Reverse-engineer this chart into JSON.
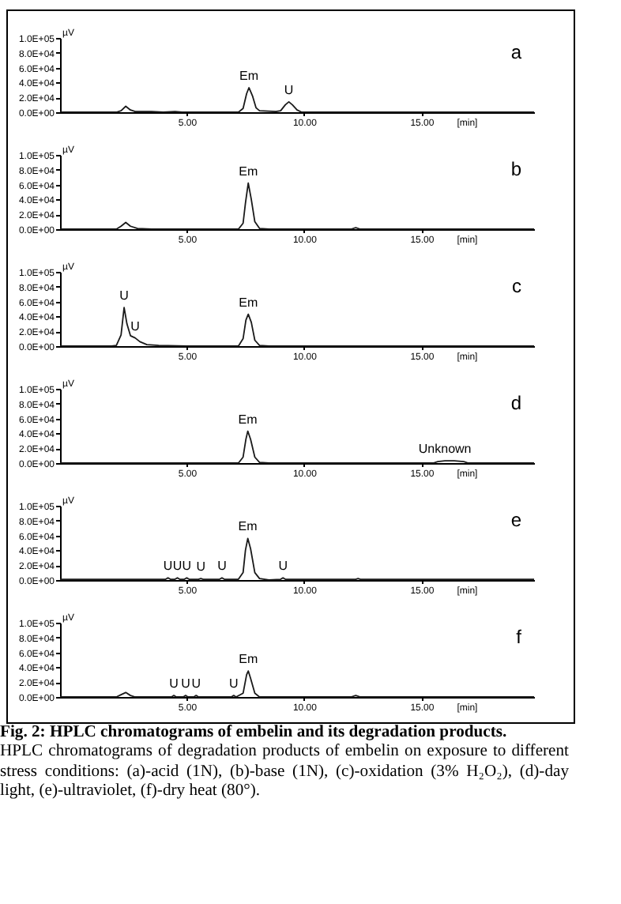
{
  "chart_data": [
    {
      "type": "line",
      "title": "a",
      "xlabel": "[min]",
      "ylabel": "µV",
      "xlim": [
        -0.4,
        19.8
      ],
      "ylim": [
        0,
        100000
      ],
      "xticks": [
        {
          "value": 5,
          "label": "5.00"
        },
        {
          "value": 10,
          "label": "10.00"
        },
        {
          "value": 15,
          "label": "15.00"
        }
      ],
      "yticks": [
        {
          "value": 0,
          "label": "0.0E+00"
        },
        {
          "value": 20000,
          "label": "2.0E+04"
        },
        {
          "value": 40000,
          "label": "4.0E+04"
        },
        {
          "value": 60000,
          "label": "6.0E+04"
        },
        {
          "value": 80000,
          "label": "8.0E+04"
        },
        {
          "value": 100000,
          "label": "1.0E+05"
        }
      ],
      "grid": false,
      "marker": "none",
      "series": [
        {
          "color": "#1a1a1a",
          "x": [
            -0.4,
            2.0,
            2.2,
            2.4,
            2.6,
            2.8,
            3.5,
            4.0,
            4.5,
            4.8,
            7.2,
            7.4,
            7.55,
            7.65,
            7.8,
            7.95,
            8.1,
            8.8,
            9.0,
            9.2,
            9.35,
            9.5,
            9.7,
            9.9,
            19.8
          ],
          "values": [
            0,
            0,
            2000,
            8000,
            3000,
            1000,
            1000,
            0,
            1000,
            0,
            0,
            5000,
            25000,
            33000,
            22000,
            6000,
            2000,
            1000,
            2000,
            10000,
            14000,
            10000,
            3000,
            0,
            0
          ]
        }
      ],
      "annotations": [
        {
          "text": "Em",
          "x": 7.65,
          "y": 33000
        },
        {
          "text": "U",
          "x": 9.35,
          "y": 14000
        }
      ]
    },
    {
      "type": "line",
      "title": "b",
      "xlabel": "[min]",
      "ylabel": "µV",
      "xlim": [
        -0.4,
        19.8
      ],
      "ylim": [
        0,
        100000
      ],
      "xticks": [
        {
          "value": 5,
          "label": "5.00"
        },
        {
          "value": 10,
          "label": "10.00"
        },
        {
          "value": 15,
          "label": "15.00"
        }
      ],
      "yticks": [
        {
          "value": 0,
          "label": "0.0E+00"
        },
        {
          "value": 20000,
          "label": "2.0E+04"
        },
        {
          "value": 40000,
          "label": "4.0E+04"
        },
        {
          "value": 60000,
          "label": "6.0E+04"
        },
        {
          "value": 80000,
          "label": "8.0E+04"
        },
        {
          "value": 100000,
          "label": "1.0E+05"
        }
      ],
      "grid": false,
      "marker": "none",
      "series": [
        {
          "color": "#1a1a1a",
          "x": [
            -0.4,
            2.0,
            2.2,
            2.4,
            2.6,
            2.9,
            3.5,
            7.2,
            7.4,
            7.5,
            7.62,
            7.75,
            7.9,
            8.1,
            8.5,
            12.0,
            12.2,
            12.4,
            19.8
          ],
          "values": [
            0,
            0,
            4000,
            9000,
            4000,
            1000,
            0,
            0,
            8000,
            35000,
            62000,
            40000,
            10000,
            1000,
            0,
            0,
            2000,
            0,
            0
          ]
        }
      ],
      "annotations": [
        {
          "text": "Em",
          "x": 7.62,
          "y": 62000
        }
      ]
    },
    {
      "type": "line",
      "title": "c",
      "xlabel": "[min]",
      "ylabel": "µV",
      "xlim": [
        -0.4,
        19.8
      ],
      "ylim": [
        0,
        100000
      ],
      "xticks": [
        {
          "value": 5,
          "label": "5.00"
        },
        {
          "value": 10,
          "label": "10.00"
        },
        {
          "value": 15,
          "label": "15.00"
        }
      ],
      "yticks": [
        {
          "value": 0,
          "label": "0.0E+00"
        },
        {
          "value": 20000,
          "label": "2.0E+04"
        },
        {
          "value": 40000,
          "label": "4.0E+04"
        },
        {
          "value": 60000,
          "label": "6.0E+04"
        },
        {
          "value": 80000,
          "label": "8.0E+04"
        },
        {
          "value": 100000,
          "label": "1.0E+05"
        }
      ],
      "grid": false,
      "marker": "none",
      "series": [
        {
          "color": "#1a1a1a",
          "x": [
            -0.4,
            1.8,
            2.0,
            2.2,
            2.33,
            2.45,
            2.6,
            2.8,
            3.0,
            3.3,
            3.8,
            5.0,
            7.2,
            7.4,
            7.52,
            7.62,
            7.75,
            7.9,
            8.1,
            8.5,
            19.8
          ],
          "values": [
            0,
            0,
            1000,
            15000,
            52000,
            30000,
            14000,
            11000,
            6000,
            2000,
            1000,
            0,
            0,
            10000,
            35000,
            43000,
            32000,
            8000,
            1000,
            0,
            0
          ]
        }
      ],
      "annotations": [
        {
          "text": "U",
          "x": 2.33,
          "y": 52000
        },
        {
          "text": "U",
          "x": 2.8,
          "y": 11000
        },
        {
          "text": "Em",
          "x": 7.62,
          "y": 43000
        }
      ]
    },
    {
      "type": "line",
      "title": "d",
      "xlabel": "[min]",
      "ylabel": "µV",
      "xlim": [
        -0.4,
        19.8
      ],
      "ylim": [
        0,
        100000
      ],
      "xticks": [
        {
          "value": 5,
          "label": "5.00"
        },
        {
          "value": 10,
          "label": "10.00"
        },
        {
          "value": 15,
          "label": "15.00"
        }
      ],
      "yticks": [
        {
          "value": 0,
          "label": "0.0E+00"
        },
        {
          "value": 20000,
          "label": "2.0E+04"
        },
        {
          "value": 40000,
          "label": "4.0E+04"
        },
        {
          "value": 60000,
          "label": "6.0E+04"
        },
        {
          "value": 80000,
          "label": "8.0E+04"
        },
        {
          "value": 100000,
          "label": "1.0E+05"
        }
      ],
      "grid": false,
      "marker": "none",
      "series": [
        {
          "color": "#1a1a1a",
          "x": [
            -0.4,
            7.2,
            7.4,
            7.52,
            7.6,
            7.72,
            7.9,
            8.1,
            8.5,
            15.5,
            15.7,
            16.0,
            16.4,
            16.8,
            17.0,
            19.8
          ],
          "values": [
            0,
            0,
            8000,
            32000,
            43000,
            32000,
            8000,
            1000,
            0,
            0,
            2000,
            3000,
            3000,
            2000,
            0,
            0
          ]
        }
      ],
      "annotations": [
        {
          "text": "Em",
          "x": 7.6,
          "y": 43000
        },
        {
          "text": "Unknown",
          "x": 16.0,
          "y": 3000
        }
      ]
    },
    {
      "type": "line",
      "title": "e",
      "xlabel": "[min]",
      "ylabel": "µV",
      "xlim": [
        -0.4,
        19.8
      ],
      "ylim": [
        0,
        100000
      ],
      "xticks": [
        {
          "value": 5,
          "label": "5.00"
        },
        {
          "value": 10,
          "label": "10.00"
        },
        {
          "value": 15,
          "label": "15.00"
        }
      ],
      "yticks": [
        {
          "value": 0,
          "label": "0.0E+00"
        },
        {
          "value": 20000,
          "label": "2.0E+04"
        },
        {
          "value": 40000,
          "label": "4.0E+04"
        },
        {
          "value": 60000,
          "label": "6.0E+04"
        },
        {
          "value": 80000,
          "label": "8.0E+04"
        },
        {
          "value": 100000,
          "label": "1.0E+05"
        }
      ],
      "grid": false,
      "marker": "none",
      "series": [
        {
          "color": "#1a1a1a",
          "x": [
            -0.4,
            4.1,
            4.2,
            4.3,
            4.5,
            4.6,
            4.7,
            4.9,
            5.0,
            5.1,
            5.5,
            5.6,
            5.7,
            6.4,
            6.5,
            6.6,
            7.2,
            7.4,
            7.5,
            7.6,
            7.72,
            7.9,
            8.1,
            8.5,
            9.0,
            9.1,
            9.2,
            12.2,
            12.3,
            12.4,
            19.8
          ],
          "values": [
            1000,
            1000,
            3000,
            1000,
            1000,
            3000,
            1000,
            1000,
            3000,
            1000,
            1000,
            2000,
            1000,
            1000,
            3000,
            1000,
            1000,
            10000,
            40000,
            56000,
            42000,
            10000,
            2000,
            0,
            1000,
            3000,
            1000,
            1000,
            2000,
            1000,
            1000
          ]
        }
      ],
      "annotations": [
        {
          "text": "Em",
          "x": 7.6,
          "y": 56000
        },
        {
          "text": "U",
          "x": 4.2,
          "y": 3000
        },
        {
          "text": "U",
          "x": 4.6,
          "y": 3000
        },
        {
          "text": "U",
          "x": 5.0,
          "y": 3000
        },
        {
          "text": "U",
          "x": 5.6,
          "y": 2000
        },
        {
          "text": "U",
          "x": 6.5,
          "y": 3000
        },
        {
          "text": "U",
          "x": 9.1,
          "y": 3000
        }
      ]
    },
    {
      "type": "line",
      "title": "f",
      "xlabel": "[min]",
      "ylabel": "µV",
      "xlim": [
        -0.4,
        19.8
      ],
      "ylim": [
        0,
        100000
      ],
      "xticks": [
        {
          "value": 5,
          "label": "5.00"
        },
        {
          "value": 10,
          "label": "10.00"
        },
        {
          "value": 15,
          "label": "15.00"
        }
      ],
      "yticks": [
        {
          "value": 0,
          "label": "0.0E+00"
        },
        {
          "value": 20000,
          "label": "2.0E+04"
        },
        {
          "value": 40000,
          "label": "4.0E+04"
        },
        {
          "value": 60000,
          "label": "6.0E+04"
        },
        {
          "value": 80000,
          "label": "8.0E+04"
        },
        {
          "value": 100000,
          "label": "1.0E+05"
        }
      ],
      "grid": false,
      "marker": "none",
      "series": [
        {
          "color": "#1a1a1a",
          "x": [
            -0.4,
            2.0,
            2.2,
            2.4,
            2.6,
            2.8,
            4.35,
            4.45,
            4.55,
            4.85,
            4.95,
            5.05,
            5.3,
            5.4,
            5.5,
            6.9,
            7.0,
            7.1,
            7.4,
            7.55,
            7.62,
            7.72,
            7.9,
            8.1,
            12.0,
            12.2,
            12.4,
            19.8
          ],
          "values": [
            0,
            0,
            3000,
            6000,
            2000,
            0,
            0,
            2000,
            0,
            0,
            2000,
            0,
            0,
            2000,
            0,
            0,
            2000,
            0,
            5000,
            30000,
            35000,
            25000,
            5000,
            0,
            0,
            2000,
            0,
            0
          ]
        }
      ],
      "annotations": [
        {
          "text": "Em",
          "x": 7.62,
          "y": 35000
        },
        {
          "text": "U",
          "x": 4.45,
          "y": 2000
        },
        {
          "text": "U",
          "x": 4.95,
          "y": 2000
        },
        {
          "text": "U",
          "x": 5.4,
          "y": 2000
        },
        {
          "text": "U",
          "x": 7.0,
          "y": 2000
        },
        "Fig. 2: HPLC chromatograms of embelin and its degradation products.",
        "HPLC chromatograms of degradation products of embelin on exposure to different stress conditions: (a)-acid (1N), (b)-base (1N), (c)-oxidation (3% H₂O₂), (d)-day light, (e)-ultraviolet, (f)-dry heat (80°)."
      ]
    }
  ]
}
